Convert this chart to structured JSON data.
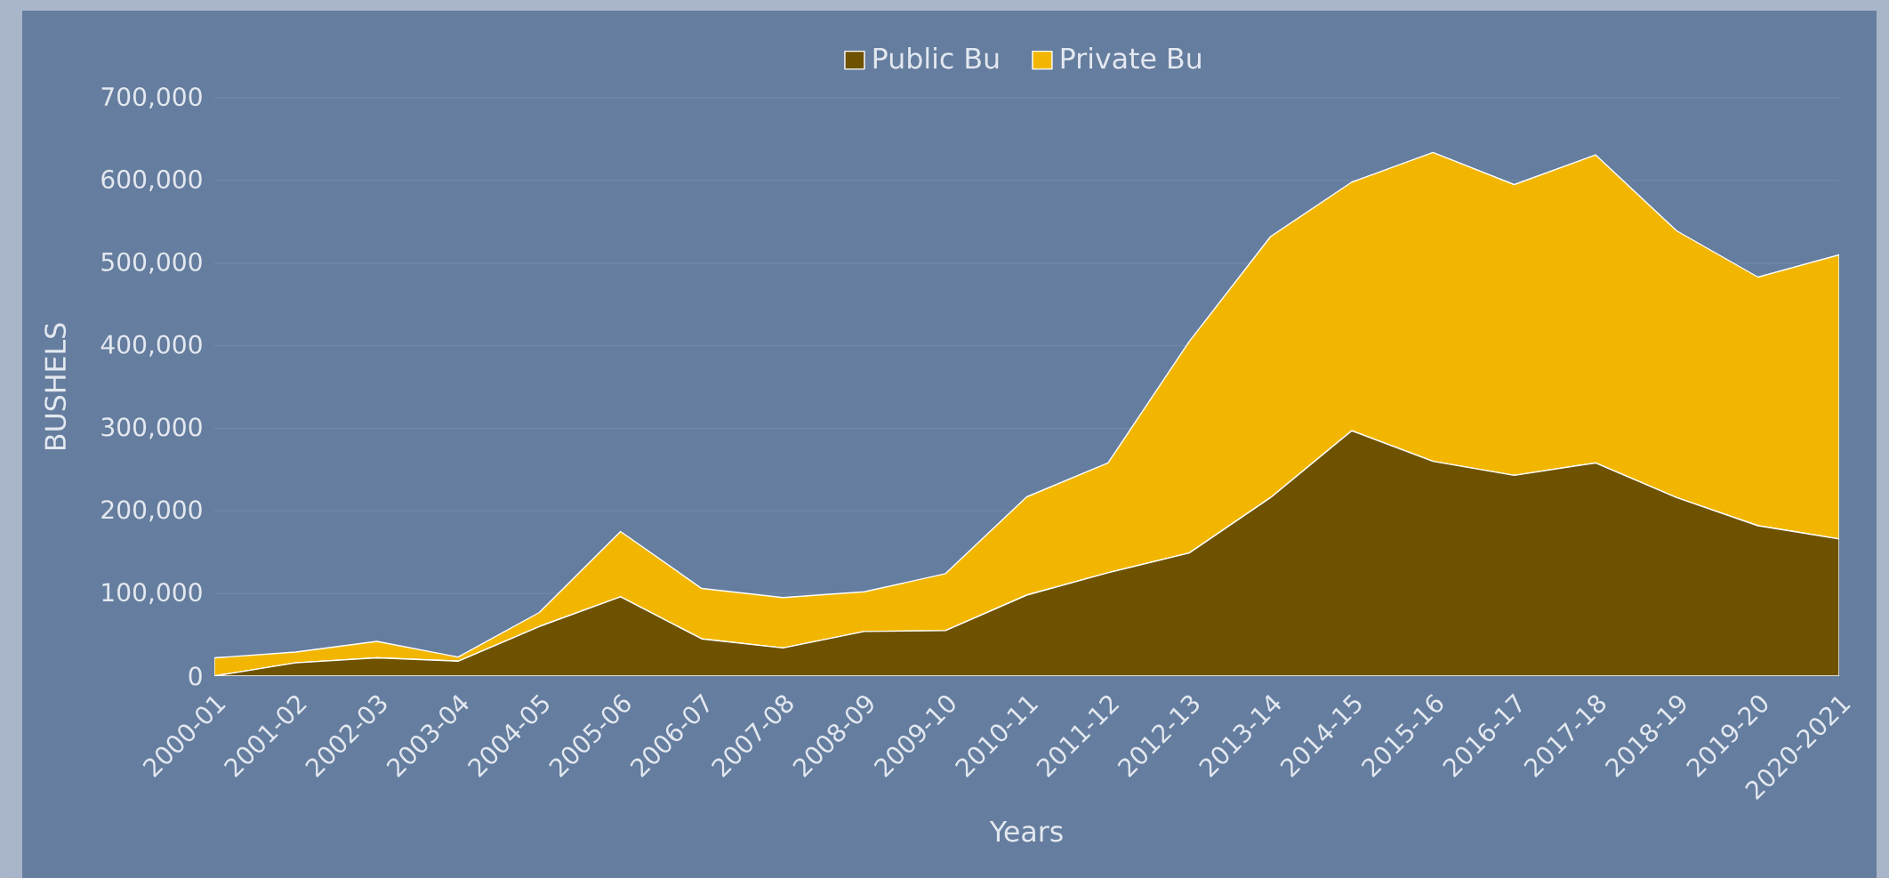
{
  "chart_data": {
    "type": "area",
    "stacked": true,
    "xlabel": "Years",
    "ylabel": "BUSHELS",
    "categories": [
      "2000-01",
      "2001-02",
      "2002-03",
      "2003-04",
      "2004-05",
      "2005-06",
      "2006-07",
      "2007-08",
      "2008-09",
      "2009-10",
      "2010-11",
      "2011-12",
      "2012-13",
      "2013-14",
      "2014-15",
      "2015-16",
      "2016-17",
      "2017-18",
      "2018-19",
      "2019-20",
      "2020-2021"
    ],
    "series": [
      {
        "name": "Public Bu",
        "color": "#6e5200",
        "values": [
          0,
          16000,
          22000,
          18000,
          60000,
          96000,
          45000,
          34000,
          54000,
          55000,
          98000,
          125000,
          149000,
          216000,
          297000,
          260000,
          243000,
          258000,
          216000,
          182000,
          166000
        ]
      },
      {
        "name": "Private Bu",
        "color": "#f2b600",
        "values": [
          22000,
          13000,
          20000,
          5000,
          17000,
          79000,
          61000,
          61000,
          48000,
          69000,
          119000,
          133000,
          256000,
          316000,
          301000,
          374000,
          352000,
          373000,
          323000,
          301000,
          344000
        ]
      }
    ],
    "ylim": [
      0,
      700000
    ],
    "yticks": [
      {
        "value": 0,
        "label": "0"
      },
      {
        "value": 100000,
        "label": "100,000"
      },
      {
        "value": 200000,
        "label": "200,000"
      },
      {
        "value": 300000,
        "label": "300,000"
      },
      {
        "value": 400000,
        "label": "400,000"
      },
      {
        "value": 500000,
        "label": "500,000"
      },
      {
        "value": 600000,
        "label": "600,000"
      },
      {
        "value": 700000,
        "label": "700,000"
      }
    ],
    "grid": "y",
    "legend": "top"
  }
}
